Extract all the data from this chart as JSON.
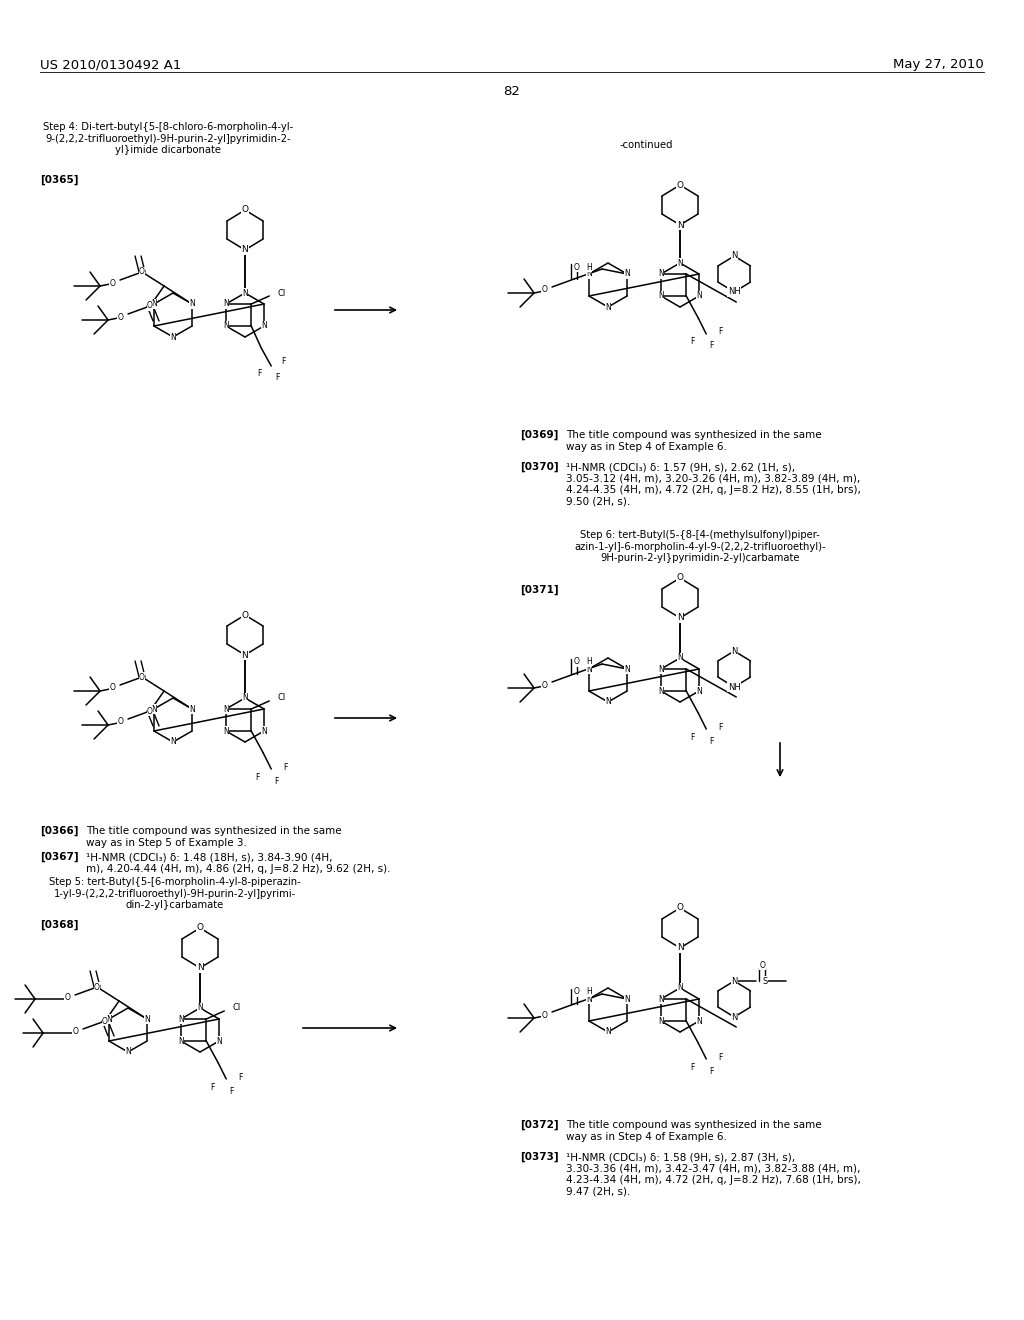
{
  "background": "#ffffff",
  "header_left": "US 2010/0130492 A1",
  "header_right": "May 27, 2010",
  "page_number": "82",
  "step4_title": "Step 4: Di-tert-butyl{5-[8-chloro-6-morpholin-4-yl-\n9-(2,2,2-trifluoroethyl)-9H-purin-2-yl]pyrimidin-2-\nyl}imide dicarbonate",
  "ref365": "[0365]",
  "ref366_text": "The title compound was synthesized in the same\nway as in Step 5 of Example 3.",
  "ref367_text": "¹H-NMR (CDCl₃) δ: 1.48 (18H, s), 3.84-3.90 (4H,\nm), 4.20-4.44 (4H, m), 4.86 (2H, q, J=8.2 Hz), 9.62 (2H, s).",
  "step5_title": "Step 5: tert-Butyl{5-[6-morpholin-4-yl-8-piperazin-\n1-yl-9-(2,2,2-trifluoroethyl)-9H-purin-2-yl]pyrimi-\ndin-2-yl}carbamate",
  "ref368": "[0368]",
  "continued": "-continued",
  "ref369_text": "The title compound was synthesized in the same\nway as in Step 4 of Example 6.",
  "ref370_text": "¹H-NMR (CDCl₃) δ: 1.57 (9H, s), 2.62 (1H, s),\n3.05-3.12 (4H, m), 3.20-3.26 (4H, m), 3.82-3.89 (4H, m),\n4.24-4.35 (4H, m), 4.72 (2H, q, J=8.2 Hz), 8.55 (1H, brs),\n9.50 (2H, s).",
  "step6_title": "Step 6: tert-Butyl(5-{8-[4-(methylsulfonyl)piper-\nazin-1-yl]-6-morpholin-4-yl-9-(2,2,2-trifluoroethyl)-\n9H-purin-2-yl}pyrimidin-2-yl)carbamate",
  "ref371": "[0371]",
  "ref372_text": "The title compound was synthesized in the same\nway as in Step 4 of Example 6.",
  "ref373_text": "¹H-NMR (CDCl₃) δ: 1.58 (9H, s), 2.87 (3H, s),\n3.30-3.36 (4H, m), 3.42-3.47 (4H, m), 3.82-3.88 (4H, m),\n4.23-4.34 (4H, m), 4.72 (2H, q, J=8.2 Hz), 7.68 (1H, brs),\n9.47 (2H, s)."
}
